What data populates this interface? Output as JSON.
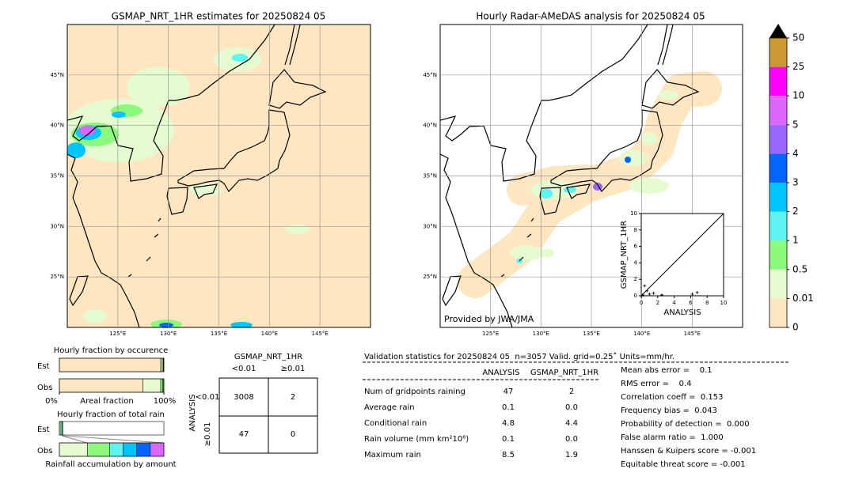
{
  "map_left": {
    "title": "GSMAP_NRT_1HR estimates for 20250824 05",
    "lonlim": [
      120,
      150
    ],
    "latlim": [
      20,
      50
    ],
    "lat_ticks": [
      {
        "value": 45,
        "label": "45°N"
      },
      {
        "value": 40,
        "label": "40°N"
      },
      {
        "value": 35,
        "label": "35°N"
      },
      {
        "value": 30,
        "label": "30°N"
      },
      {
        "value": 25,
        "label": "25°N"
      }
    ],
    "lon_ticks": [
      {
        "value": 125,
        "label": "125°E"
      },
      {
        "value": 130,
        "label": "130°E"
      },
      {
        "value": 135,
        "label": "135°E"
      },
      {
        "value": 140,
        "label": "140°E"
      },
      {
        "value": 145,
        "label": "145°E"
      }
    ]
  },
  "map_right": {
    "title": "Hourly Radar-AMeDAS analysis for 20250824 05",
    "credit": "Provided by JWA/JMA",
    "lonlim": [
      120,
      150
    ],
    "latlim": [
      20,
      50
    ],
    "lat_ticks": [
      {
        "value": 45,
        "label": "45°N"
      },
      {
        "value": 40,
        "label": "40°N"
      },
      {
        "value": 35,
        "label": "35°N"
      },
      {
        "value": 30,
        "label": "30°N"
      },
      {
        "value": 25,
        "label": "25°N"
      }
    ],
    "lon_ticks": [
      {
        "value": 125,
        "label": "125°E"
      },
      {
        "value": 130,
        "label": "130°E"
      },
      {
        "value": 135,
        "label": "135°E"
      },
      {
        "value": 140,
        "label": "140°E"
      },
      {
        "value": 145,
        "label": "145°E"
      }
    ]
  },
  "inset": {
    "xlabel": "ANALYSIS",
    "ylabel": "GSMAP_NRT_1HR",
    "xlim": [
      0,
      10
    ],
    "ylim": [
      0,
      10
    ],
    "xticks": [
      0,
      2,
      4,
      6,
      8,
      10
    ],
    "yticks": [
      0,
      2,
      4,
      6,
      8,
      10
    ],
    "x": [
      0.2,
      0.4,
      0.7,
      1.0,
      1.5,
      2.5,
      6.2,
      6.8
    ],
    "y": [
      0.1,
      1.2,
      0.6,
      0.2,
      0.3,
      0.1,
      0.2,
      0.4
    ]
  },
  "colorbar": {
    "ticks": [
      0,
      0.01,
      0.5,
      1,
      2,
      3,
      4,
      5,
      10,
      25,
      50
    ],
    "colors": [
      "#fde6c0",
      "#e5fbd0",
      "#8cf87c",
      "#5ff4f4",
      "#00c6ff",
      "#0066ff",
      "#9966ff",
      "#dd66ff",
      "#ff00ff",
      "#cc9933"
    ],
    "extend_color": "#000000"
  },
  "fraction_occurrence": {
    "title": "Hourly fraction by occurence",
    "xlabel": "Areal fraction",
    "xticks": [
      {
        "value": 0,
        "label": "0%"
      },
      {
        "value": 100,
        "label": "100%"
      }
    ],
    "colors": [
      "#fde6c0",
      "#e5fbd0",
      "#8cf87c",
      "#228822"
    ],
    "rows": [
      {
        "label": "Est",
        "values": [
          97,
          1.5,
          1,
          0.5
        ]
      },
      {
        "label": "Obs",
        "values": [
          80,
          17,
          2,
          1
        ]
      }
    ]
  },
  "fraction_total": {
    "title": "Hourly fraction of total rain",
    "xlabel": "Rainfall accumulation by amount",
    "colors": [
      "#e5fbd0",
      "#8cf87c",
      "#5ff4f4",
      "#00c6ff",
      "#0066ff",
      "#dd66ff"
    ],
    "rows": [
      {
        "label": "Est",
        "values": [
          1.5,
          1,
          1
        ]
      },
      {
        "label": "Obs",
        "values": [
          27,
          21,
          13,
          13,
          13,
          13
        ]
      }
    ]
  },
  "contingency": {
    "title": "GSMAP_NRT_1HR",
    "row_title": "ANALYSIS",
    "col_labels": [
      "<0.01",
      "≥0.01"
    ],
    "row_labels": [
      "<0.01",
      "≥0.01"
    ],
    "cells": [
      [
        "3008",
        "2"
      ],
      [
        "47",
        "0"
      ]
    ]
  },
  "validation": {
    "header": "Validation statistics for 20250824 05  n=3057 Valid. grid=0.25˚ Units=mm/hr.",
    "columns": [
      "ANALYSIS",
      "GSMAP_NRT_1HR"
    ],
    "rows": [
      [
        "Num of gridpoints raining",
        "47",
        "2"
      ],
      [
        "Average rain",
        "0.1",
        "0.0"
      ],
      [
        "Conditional rain",
        "4.8",
        "4.4"
      ],
      [
        "Rain volume (mm km²10⁶)",
        "0.1",
        "0.0"
      ],
      [
        "Maximum rain",
        "8.5",
        "1.9"
      ]
    ],
    "scores": [
      "Mean abs error =    0.1",
      "RMS error =    0.4",
      "Correlation coeff =  0.153",
      "Frequency bias =  0.043",
      "Probability of detection =  0.000",
      "False alarm ratio =  1.000",
      "Hanssen & Kuipers score = -0.001",
      "Equitable threat score = -0.001"
    ]
  }
}
